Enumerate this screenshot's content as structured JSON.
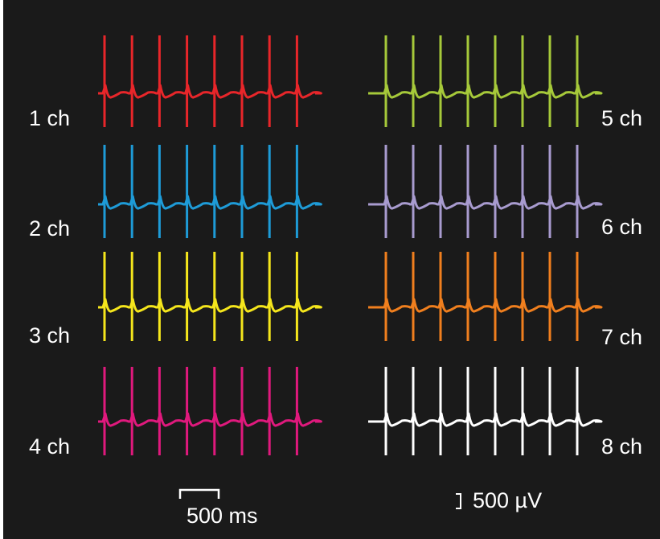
{
  "chart_data": {
    "type": "line",
    "title": "",
    "xlabel": "",
    "ylabel": "",
    "beats_per_channel": 8,
    "series": [
      {
        "name": "1 ch",
        "color": "#e8262a"
      },
      {
        "name": "2 ch",
        "color": "#1e9bd7"
      },
      {
        "name": "3 ch",
        "color": "#f5e61c"
      },
      {
        "name": "4 ch",
        "color": "#e0197d"
      },
      {
        "name": "5 ch",
        "color": "#a6c93a"
      },
      {
        "name": "6 ch",
        "color": "#a89bcf"
      },
      {
        "name": "7 ch",
        "color": "#f07f1e"
      },
      {
        "name": "8 ch",
        "color": "#ffffff"
      }
    ],
    "scale_bars": {
      "time": {
        "value": 500,
        "unit": "ms",
        "label": "500 ms"
      },
      "amplitude": {
        "value": 500,
        "unit": "µV",
        "label": "500 µV"
      }
    }
  },
  "labels": {
    "ch1": "1 ch",
    "ch2": "2 ch",
    "ch3": "3 ch",
    "ch4": "4 ch",
    "ch5": "5 ch",
    "ch6": "6 ch",
    "ch7": "7 ch",
    "ch8": "8 ch"
  }
}
